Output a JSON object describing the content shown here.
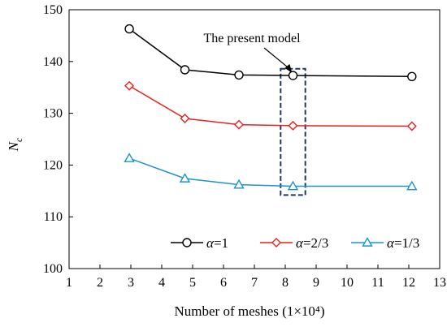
{
  "chart_data": {
    "type": "line",
    "xlabel": "Number of meshes (1×10⁴)",
    "ylabel": "N",
    "ylabel_sub": "c",
    "xlim": [
      1,
      13
    ],
    "ylim": [
      100,
      150
    ],
    "xticks": [
      1,
      2,
      3,
      4,
      5,
      6,
      7,
      8,
      9,
      10,
      11,
      12,
      13
    ],
    "yticks": [
      100,
      110,
      120,
      130,
      140,
      150
    ],
    "grid": false,
    "legend_position": "bottom-center",
    "series": [
      {
        "name_sym": "α",
        "name_val": "=1",
        "marker": "circle",
        "color": "#000000",
        "x": [
          2.95,
          4.75,
          6.5,
          8.25,
          12.1
        ],
        "y": [
          146.3,
          138.4,
          137.4,
          137.3,
          137.1
        ]
      },
      {
        "name_sym": "α",
        "name_val": "=2/3",
        "marker": "diamond",
        "color": "#e8211f",
        "x": [
          2.95,
          4.75,
          6.5,
          8.25,
          12.1
        ],
        "y": [
          135.3,
          129.0,
          127.8,
          127.6,
          127.5
        ]
      },
      {
        "name_sym": "α",
        "name_val": "=1/3",
        "marker": "triangle",
        "color": "#1c93d1",
        "x": [
          2.95,
          4.75,
          6.5,
          8.25,
          12.1
        ],
        "y": [
          121.3,
          117.4,
          116.2,
          115.9,
          115.9
        ]
      }
    ],
    "annotation": {
      "text": "The present model",
      "box_x": [
        7.85,
        8.65
      ],
      "box_y": [
        114.2,
        138.6
      ],
      "box_color": "#1f3864"
    }
  }
}
